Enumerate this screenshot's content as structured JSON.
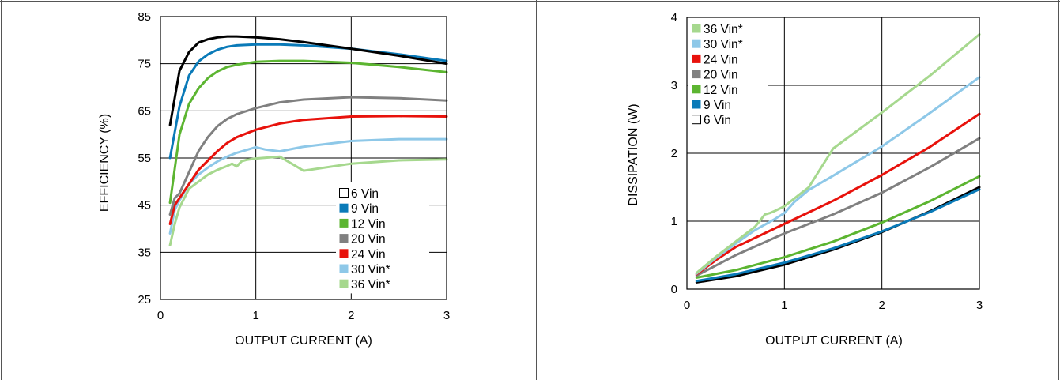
{
  "chart_data": [
    {
      "type": "line",
      "title": "",
      "xlabel": "OUTPUT CURRENT (A)",
      "ylabel": "EFFICIENCY (%)",
      "xlim": [
        0,
        3
      ],
      "ylim": [
        25,
        85
      ],
      "x_ticks": [
        "0",
        "1",
        "2",
        "3"
      ],
      "y_ticks": [
        "25",
        "35",
        "45",
        "55",
        "65",
        "75",
        "85"
      ],
      "x_tick_values": [
        0,
        1,
        2,
        3
      ],
      "y_tick_values": [
        25,
        35,
        45,
        55,
        65,
        75,
        85
      ],
      "grid": true,
      "legend_position": "bottom-right",
      "series": [
        {
          "name": "6 Vin",
          "color": "#000000",
          "legend_marker": "hollow",
          "x": [
            0.1,
            0.2,
            0.3,
            0.4,
            0.5,
            0.6,
            0.7,
            0.8,
            1.0,
            1.25,
            1.5,
            2.0,
            2.5,
            3.0
          ],
          "y": [
            62,
            73.5,
            77.5,
            79.5,
            80.2,
            80.6,
            80.8,
            80.8,
            80.6,
            80.2,
            79.6,
            78.2,
            76.7,
            75.0
          ]
        },
        {
          "name": "9 Vin",
          "color": "#0a7ab8",
          "x": [
            0.1,
            0.2,
            0.3,
            0.4,
            0.5,
            0.6,
            0.7,
            0.8,
            1.0,
            1.25,
            1.5,
            2.0,
            2.5,
            3.0
          ],
          "y": [
            55,
            66,
            72.5,
            75.5,
            77.0,
            78.0,
            78.6,
            78.9,
            79.1,
            79.1,
            78.9,
            78.2,
            77.0,
            75.6
          ]
        },
        {
          "name": "12 Vin",
          "color": "#5cb531",
          "x": [
            0.1,
            0.2,
            0.3,
            0.4,
            0.5,
            0.6,
            0.7,
            0.8,
            1.0,
            1.25,
            1.5,
            2.0,
            2.5,
            3.0
          ],
          "y": [
            45.5,
            60,
            66.5,
            69.8,
            72.0,
            73.4,
            74.3,
            74.8,
            75.4,
            75.6,
            75.6,
            75.2,
            74.3,
            73.2
          ]
        },
        {
          "name": "20 Vin",
          "color": "#808080",
          "x": [
            0.1,
            0.15,
            0.2,
            0.3,
            0.4,
            0.5,
            0.6,
            0.7,
            0.8,
            1.0,
            1.25,
            1.5,
            2.0,
            2.5,
            3.0
          ],
          "y": [
            43,
            46.5,
            47.5,
            52,
            56.5,
            59.5,
            61.8,
            63.3,
            64.3,
            65.6,
            66.8,
            67.4,
            67.9,
            67.7,
            67.2
          ]
        },
        {
          "name": "24 Vin",
          "color": "#e8120c",
          "x": [
            0.1,
            0.15,
            0.2,
            0.3,
            0.4,
            0.5,
            0.6,
            0.7,
            0.8,
            1.0,
            1.25,
            1.5,
            2.0,
            2.5,
            3.0
          ],
          "y": [
            41,
            45,
            46.5,
            49.5,
            52.5,
            54.5,
            56.5,
            58.2,
            59.4,
            61.0,
            62.3,
            63.1,
            63.8,
            63.9,
            63.8
          ]
        },
        {
          "name": "30 Vin*",
          "color": "#8ec8e8",
          "x": [
            0.1,
            0.15,
            0.2,
            0.3,
            0.4,
            0.5,
            0.6,
            0.7,
            0.8,
            1.0,
            1.1,
            1.25,
            1.5,
            2.0,
            2.5,
            3.0
          ],
          "y": [
            39,
            44,
            46,
            49.5,
            51.5,
            53.0,
            54.3,
            55.3,
            56.1,
            57.3,
            56.8,
            56.4,
            57.4,
            58.6,
            59.0,
            59.0
          ]
        },
        {
          "name": "36 Vin*",
          "color": "#a6d88e",
          "x": [
            0.1,
            0.15,
            0.2,
            0.25,
            0.3,
            0.4,
            0.5,
            0.6,
            0.7,
            0.75,
            0.8,
            0.85,
            0.9,
            1.0,
            1.25,
            1.5,
            2.0,
            2.5,
            3.0
          ],
          "y": [
            36.5,
            41,
            44.5,
            46.5,
            48.5,
            50,
            51.5,
            52.5,
            53.3,
            53.8,
            53.2,
            54.3,
            54.6,
            54.9,
            55.3,
            52.3,
            53.8,
            54.5,
            54.7
          ]
        }
      ]
    },
    {
      "type": "line",
      "title": "",
      "xlabel": "OUTPUT CURRENT (A)",
      "ylabel": "DISSIPATION (W)",
      "xlim": [
        0,
        3
      ],
      "ylim": [
        0,
        4
      ],
      "x_ticks": [
        "0",
        "1",
        "2",
        "3"
      ],
      "y_ticks": [
        "0",
        "1",
        "2",
        "3",
        "4"
      ],
      "x_tick_values": [
        0,
        1,
        2,
        3
      ],
      "y_tick_values": [
        0,
        1,
        2,
        3,
        4
      ],
      "grid": true,
      "legend_position": "top-left",
      "series": [
        {
          "name": "36 Vin*",
          "color": "#a6d88e",
          "x": [
            0.1,
            0.3,
            0.5,
            0.7,
            0.8,
            0.85,
            0.9,
            1.0,
            1.25,
            1.5,
            2.0,
            2.5,
            3.0
          ],
          "y": [
            0.24,
            0.48,
            0.7,
            0.92,
            1.1,
            1.12,
            1.15,
            1.22,
            1.5,
            2.07,
            2.6,
            3.15,
            3.75
          ]
        },
        {
          "name": "30 Vin*",
          "color": "#8ec8e8",
          "x": [
            0.1,
            0.3,
            0.5,
            0.7,
            0.9,
            1.0,
            1.1,
            1.25,
            1.5,
            2.0,
            2.5,
            3.0
          ],
          "y": [
            0.23,
            0.46,
            0.67,
            0.87,
            1.03,
            1.12,
            1.28,
            1.46,
            1.67,
            2.1,
            2.6,
            3.12
          ]
        },
        {
          "name": "24 Vin",
          "color": "#e8120c",
          "x": [
            0.1,
            0.3,
            0.5,
            0.75,
            1.0,
            1.5,
            2.0,
            2.5,
            3.0
          ],
          "y": [
            0.22,
            0.43,
            0.62,
            0.79,
            0.96,
            1.3,
            1.68,
            2.1,
            2.58
          ]
        },
        {
          "name": "20 Vin",
          "color": "#808080",
          "x": [
            0.1,
            0.3,
            0.5,
            0.75,
            1.0,
            1.5,
            2.0,
            2.5,
            3.0
          ],
          "y": [
            0.2,
            0.35,
            0.5,
            0.66,
            0.82,
            1.1,
            1.42,
            1.8,
            2.22
          ]
        },
        {
          "name": "12 Vin",
          "color": "#5cb531",
          "x": [
            0.1,
            0.5,
            1.0,
            1.5,
            2.0,
            2.5,
            3.0
          ],
          "y": [
            0.17,
            0.28,
            0.47,
            0.7,
            0.98,
            1.3,
            1.66
          ]
        },
        {
          "name": "9 Vin",
          "color": "#0a7ab8",
          "x": [
            0.1,
            0.5,
            1.0,
            1.5,
            2.0,
            2.5,
            3.0
          ],
          "y": [
            0.12,
            0.22,
            0.39,
            0.6,
            0.85,
            1.14,
            1.47
          ]
        },
        {
          "name": "6 Vin",
          "color": "#000000",
          "legend_marker": "hollow",
          "x": [
            0.1,
            0.5,
            1.0,
            1.5,
            2.0,
            2.5,
            3.0
          ],
          "y": [
            0.1,
            0.19,
            0.36,
            0.58,
            0.84,
            1.15,
            1.5
          ]
        }
      ]
    }
  ]
}
